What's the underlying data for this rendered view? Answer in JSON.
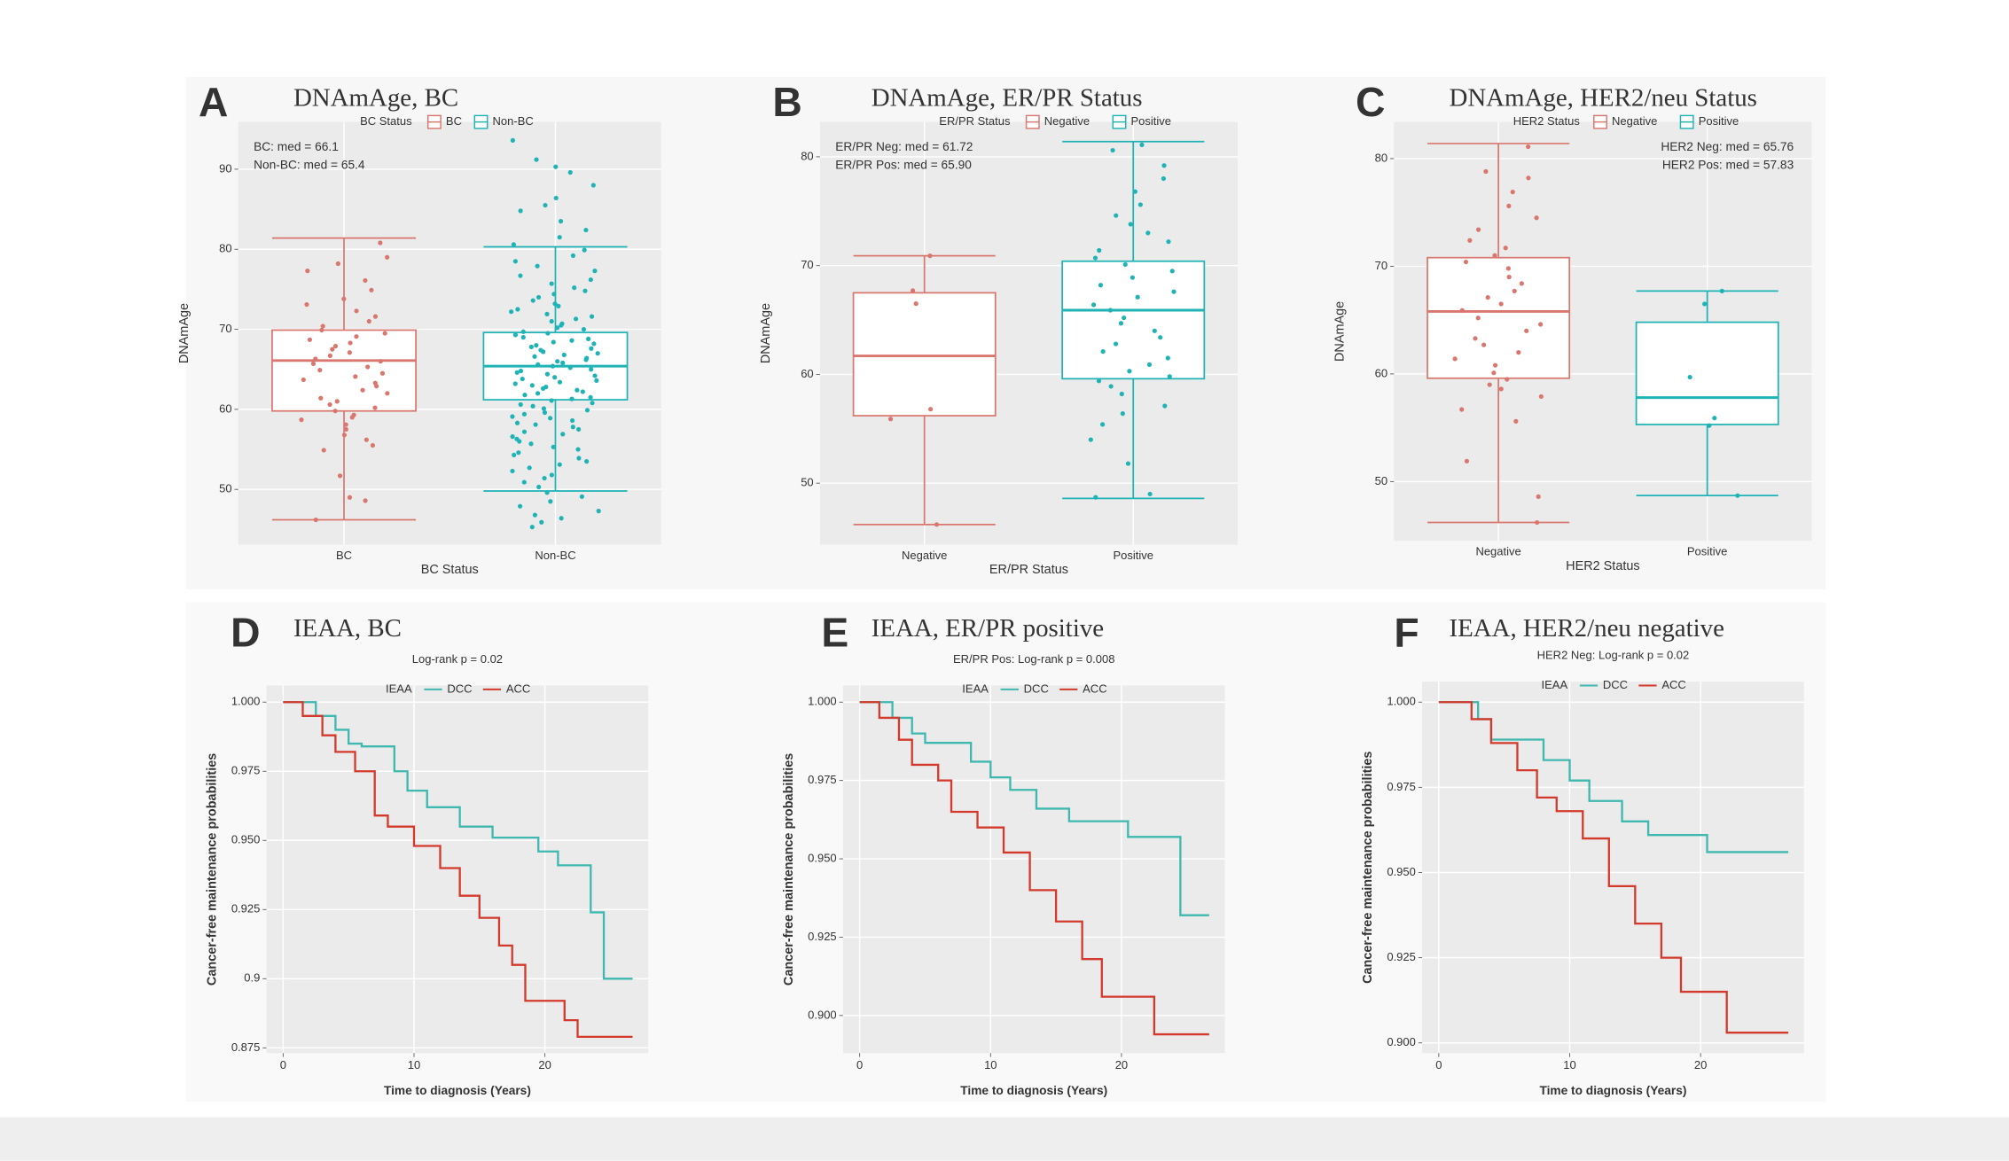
{
  "chart_data": [
    {
      "type": "box",
      "panel_label": "A",
      "title": "DNAmAge, BC",
      "legend_title": "BC Status",
      "x_label": "BC Status",
      "y_label": "DNAmAge",
      "annotation_corner": "top-left",
      "annotations": [
        "BC: med = 66.1",
        "Non-BC: med = 65.4"
      ],
      "categories": [
        "BC",
        "Non-BC"
      ],
      "ylim": [
        43.1,
        95.9
      ],
      "yticks": [
        50,
        60,
        70,
        80,
        90
      ],
      "grid": true,
      "series": [
        {
          "name": "BC",
          "color": "#d9776f",
          "min": 46.2,
          "q1": 59.8,
          "median": 66.1,
          "q3": 69.9,
          "max": 81.4,
          "points": [
            46.2,
            48.6,
            49.0,
            51.7,
            54.9,
            55.5,
            56.2,
            56.8,
            57.5,
            58.1,
            58.7,
            59.0,
            59.3,
            59.8,
            60.2,
            60.6,
            61.0,
            61.4,
            62.0,
            62.4,
            62.9,
            63.3,
            63.7,
            64.1,
            64.5,
            64.9,
            65.3,
            65.7,
            66.0,
            66.3,
            66.7,
            67.1,
            67.5,
            67.9,
            68.3,
            68.7,
            69.1,
            69.5,
            69.9,
            70.4,
            71.0,
            71.6,
            72.3,
            73.1,
            73.8,
            74.9,
            76.1,
            77.3,
            78.2,
            79.0,
            80.8
          ]
        },
        {
          "name": "Non-BC",
          "color": "#1fb3b6",
          "min": 49.8,
          "q1": 61.2,
          "median": 65.4,
          "q3": 69.6,
          "max": 80.3,
          "points": [
            45.3,
            45.9,
            46.4,
            46.8,
            47.3,
            47.9,
            48.5,
            49.1,
            49.6,
            50.3,
            50.9,
            51.4,
            51.8,
            52.3,
            52.7,
            53.1,
            53.5,
            53.9,
            54.3,
            54.6,
            55.0,
            55.3,
            55.7,
            56.0,
            56.3,
            56.6,
            56.9,
            57.2,
            57.5,
            57.8,
            58.1,
            58.3,
            58.6,
            58.9,
            59.1,
            59.4,
            59.6,
            59.9,
            60.1,
            60.4,
            60.6,
            60.8,
            61.1,
            61.3,
            61.5,
            61.8,
            62.0,
            62.2,
            62.4,
            62.6,
            62.8,
            63.0,
            63.2,
            63.4,
            63.6,
            63.8,
            64.0,
            64.2,
            64.4,
            64.6,
            64.8,
            65.0,
            65.2,
            65.4,
            65.6,
            65.8,
            66.0,
            66.2,
            66.4,
            66.6,
            66.8,
            67.0,
            67.2,
            67.4,
            67.6,
            67.8,
            68.0,
            68.2,
            68.4,
            68.6,
            68.8,
            69.0,
            69.3,
            69.5,
            69.7,
            70.0,
            70.2,
            70.5,
            70.7,
            71.0,
            71.3,
            71.6,
            71.9,
            72.2,
            72.5,
            72.9,
            73.2,
            73.6,
            74.0,
            74.4,
            74.8,
            75.2,
            75.7,
            76.2,
            76.7,
            77.3,
            77.9,
            78.5,
            79.2,
            79.9,
            80.6,
            81.5,
            82.4,
            83.5,
            84.8,
            85.5,
            86.4,
            88.0,
            89.6,
            90.3,
            91.2,
            93.6
          ]
        }
      ]
    },
    {
      "type": "box",
      "panel_label": "B",
      "title": "DNAmAge, ER/PR Status",
      "legend_title": "ER/PR Status",
      "x_label": "ER/PR Status",
      "y_label": "DNAmAge",
      "annotation_corner": "top-left",
      "annotations": [
        "ER/PR Neg: med = 61.72",
        "ER/PR Pos: med = 65.90"
      ],
      "categories": [
        "Negative",
        "Positive"
      ],
      "ylim": [
        44.35,
        83.2
      ],
      "yticks": [
        50,
        60,
        70,
        80
      ],
      "grid": true,
      "series": [
        {
          "name": "Negative",
          "color": "#d9776f",
          "min": 46.2,
          "q1": 56.2,
          "median": 61.7,
          "q3": 67.5,
          "max": 70.9,
          "points": [
            70.9,
            67.7,
            66.5,
            56.8,
            55.9,
            46.2
          ]
        },
        {
          "name": "Positive",
          "color": "#1fb3b6",
          "min": 48.6,
          "q1": 59.6,
          "median": 65.9,
          "q3": 70.4,
          "max": 81.4,
          "points": [
            48.7,
            49.0,
            51.8,
            54.0,
            55.4,
            56.4,
            57.1,
            58.2,
            58.9,
            59.4,
            59.8,
            60.3,
            60.9,
            61.5,
            62.1,
            62.8,
            63.4,
            64.0,
            64.7,
            65.2,
            65.9,
            66.4,
            67.1,
            67.6,
            68.2,
            68.9,
            69.5,
            70.1,
            70.7,
            71.4,
            72.2,
            73.0,
            73.8,
            74.6,
            75.6,
            76.8,
            78.0,
            79.2,
            80.6,
            81.1
          ]
        }
      ]
    },
    {
      "type": "box",
      "panel_label": "C",
      "title": "DNAmAge, HER2/neu Status",
      "legend_title": "HER2 Status",
      "x_label": "HER2 Status",
      "y_label": "DNAmAge",
      "annotation_corner": "top-right",
      "annotations": [
        "HER2 Neg: med = 65.76",
        "HER2 Pos: med = 57.83"
      ],
      "categories": [
        "Negative",
        "Positive"
      ],
      "ylim": [
        44.5,
        83.4
      ],
      "yticks": [
        50,
        60,
        70,
        80
      ],
      "grid": true,
      "series": [
        {
          "name": "Negative",
          "color": "#d9776f",
          "min": 46.2,
          "q1": 59.6,
          "median": 65.8,
          "q3": 70.8,
          "max": 81.4,
          "points": [
            46.2,
            48.6,
            51.9,
            55.6,
            56.7,
            57.9,
            58.6,
            59.0,
            59.5,
            60.1,
            60.8,
            61.4,
            62.0,
            62.7,
            63.3,
            64.0,
            64.6,
            65.2,
            65.9,
            66.5,
            67.1,
            67.7,
            68.4,
            69.0,
            69.8,
            70.4,
            71.0,
            71.7,
            72.4,
            73.4,
            74.5,
            75.6,
            76.9,
            78.2,
            78.8,
            81.1
          ]
        },
        {
          "name": "Positive",
          "color": "#1fb3b6",
          "min": 48.7,
          "q1": 55.3,
          "median": 57.8,
          "q3": 64.8,
          "max": 67.7,
          "points": [
            67.7,
            66.5,
            59.7,
            55.9,
            55.2,
            48.7
          ]
        }
      ]
    },
    {
      "type": "line",
      "panel_label": "D",
      "title": "IEAA, BC",
      "subtitle": "Log-rank p = 0.02",
      "legend_title": "IEAA",
      "x_label": "Time to diagnosis (Years)",
      "y_label": "Cancer-free maintenance probabilities",
      "label_color": "#e8743b",
      "xlim": [
        -1.27,
        27.9
      ],
      "xticks": [
        0,
        10,
        20
      ],
      "ylim": [
        0.8731,
        1.006
      ],
      "yticks": [
        0.875,
        0.9,
        0.925,
        {
          "value": 0.95,
          "label": "0.950"
        },
        0.975,
        {
          "value": 1,
          "label": "1.000"
        }
      ],
      "grid": true,
      "series": [
        {
          "name": "DCC",
          "color": "#3fb8af",
          "x": [
            0,
            2.5,
            2.5,
            4,
            4,
            5,
            5,
            6,
            6,
            8.5,
            8.5,
            9.5,
            9.5,
            11,
            11,
            13.5,
            13.5,
            16,
            16,
            19.5,
            19.5,
            21,
            21,
            23.5,
            23.5,
            24.5,
            24.5,
            26.7
          ],
          "values": [
            1,
            1,
            0.995,
            0.995,
            0.99,
            0.99,
            0.985,
            0.985,
            0.984,
            0.984,
            0.975,
            0.975,
            0.968,
            0.968,
            0.962,
            0.962,
            0.955,
            0.955,
            0.951,
            0.951,
            0.946,
            0.946,
            0.941,
            0.941,
            0.924,
            0.924,
            0.9,
            0.9
          ]
        },
        {
          "name": "ACC",
          "color": "#d33a2c",
          "x": [
            0,
            1.5,
            1.5,
            3,
            3,
            4,
            4,
            5.5,
            5.5,
            7,
            7,
            8,
            8,
            10,
            10,
            12,
            12,
            13.5,
            13.5,
            15,
            15,
            16.5,
            16.5,
            17.5,
            17.5,
            18.5,
            18.5,
            21.5,
            21.5,
            22.5,
            22.5,
            26.7
          ],
          "values": [
            1,
            1,
            0.995,
            0.995,
            0.988,
            0.988,
            0.982,
            0.982,
            0.975,
            0.975,
            0.959,
            0.959,
            0.955,
            0.955,
            0.948,
            0.948,
            0.94,
            0.94,
            0.93,
            0.93,
            0.922,
            0.922,
            0.912,
            0.912,
            0.905,
            0.905,
            0.892,
            0.892,
            0.885,
            0.885,
            0.879,
            0.879
          ]
        }
      ]
    },
    {
      "type": "line",
      "panel_label": "E",
      "title": "IEAA, ER/PR positive",
      "subtitle": "ER/PR Pos: Log-rank p = 0.008",
      "legend_title": "IEAA",
      "x_label": "Time to diagnosis (Years)",
      "y_label": "Cancer-free maintenance probabilities",
      "label_color": "#e8743b",
      "xlim": [
        -1.27,
        27.9
      ],
      "xticks": [
        0,
        10,
        20
      ],
      "ylim": [
        0.888,
        1.0053
      ],
      "yticks": [
        {
          "value": 0.9,
          "label": "0.900"
        },
        0.925,
        {
          "value": 0.95,
          "label": "0.950"
        },
        0.975,
        {
          "value": 1,
          "label": "1.000"
        }
      ],
      "grid": true,
      "series": [
        {
          "name": "DCC",
          "color": "#3fb8af",
          "x": [
            0,
            2.5,
            2.5,
            4,
            4,
            5,
            5,
            8.5,
            8.5,
            10,
            10,
            11.5,
            11.5,
            13.5,
            13.5,
            16,
            16,
            20.5,
            20.5,
            24.5,
            24.5,
            26.7
          ],
          "values": [
            1,
            1,
            0.995,
            0.995,
            0.99,
            0.99,
            0.987,
            0.987,
            0.981,
            0.981,
            0.976,
            0.976,
            0.972,
            0.972,
            0.966,
            0.966,
            0.962,
            0.962,
            0.957,
            0.957,
            0.932,
            0.932
          ]
        },
        {
          "name": "ACC",
          "color": "#d33a2c",
          "x": [
            0,
            1.5,
            1.5,
            3,
            3,
            4,
            4,
            6,
            6,
            7,
            7,
            9,
            9,
            11,
            11,
            13,
            13,
            15,
            15,
            17,
            17,
            18.5,
            18.5,
            22.5,
            22.5,
            26.7
          ],
          "values": [
            1,
            1,
            0.995,
            0.995,
            0.988,
            0.988,
            0.98,
            0.98,
            0.975,
            0.975,
            0.965,
            0.965,
            0.96,
            0.96,
            0.952,
            0.952,
            0.94,
            0.94,
            0.93,
            0.93,
            0.918,
            0.918,
            0.906,
            0.906,
            0.894,
            0.894
          ]
        }
      ]
    },
    {
      "type": "line",
      "panel_label": "F",
      "title": "IEAA, HER2/neu negative",
      "subtitle": "HER2 Neg: Log-rank p = 0.02",
      "legend_title": "IEAA",
      "x_label": "Time to diagnosis (Years)",
      "y_label": "Cancer-free maintenance probabilities",
      "label_color": "#e8743b",
      "xlim": [
        -1.27,
        27.9
      ],
      "xticks": [
        0,
        10,
        20
      ],
      "ylim": [
        0.897,
        1.006
      ],
      "yticks": [
        {
          "value": 0.9,
          "label": "0.900"
        },
        0.925,
        {
          "value": 0.95,
          "label": "0.950"
        },
        0.975,
        {
          "value": 1,
          "label": "1.000"
        }
      ],
      "grid": true,
      "series": [
        {
          "name": "DCC",
          "color": "#3fb8af",
          "x": [
            0,
            3,
            3,
            4,
            4,
            8,
            8,
            10,
            10,
            11.5,
            11.5,
            14,
            14,
            16,
            16,
            20.5,
            20.5,
            26.7
          ],
          "values": [
            1,
            1,
            0.995,
            0.995,
            0.989,
            0.989,
            0.983,
            0.983,
            0.977,
            0.977,
            0.971,
            0.971,
            0.965,
            0.965,
            0.961,
            0.961,
            0.956,
            0.956
          ]
        },
        {
          "name": "ACC",
          "color": "#d33a2c",
          "x": [
            0,
            2.5,
            2.5,
            4,
            4,
            6,
            6,
            7.5,
            7.5,
            9,
            9,
            11,
            11,
            13,
            13,
            15,
            15,
            17,
            17,
            18.5,
            18.5,
            22,
            22,
            26.7
          ],
          "values": [
            1,
            1,
            0.995,
            0.995,
            0.988,
            0.988,
            0.98,
            0.98,
            0.972,
            0.972,
            0.968,
            0.968,
            0.96,
            0.96,
            0.946,
            0.946,
            0.935,
            0.935,
            0.925,
            0.925,
            0.915,
            0.915,
            0.903,
            0.903
          ]
        }
      ]
    }
  ]
}
